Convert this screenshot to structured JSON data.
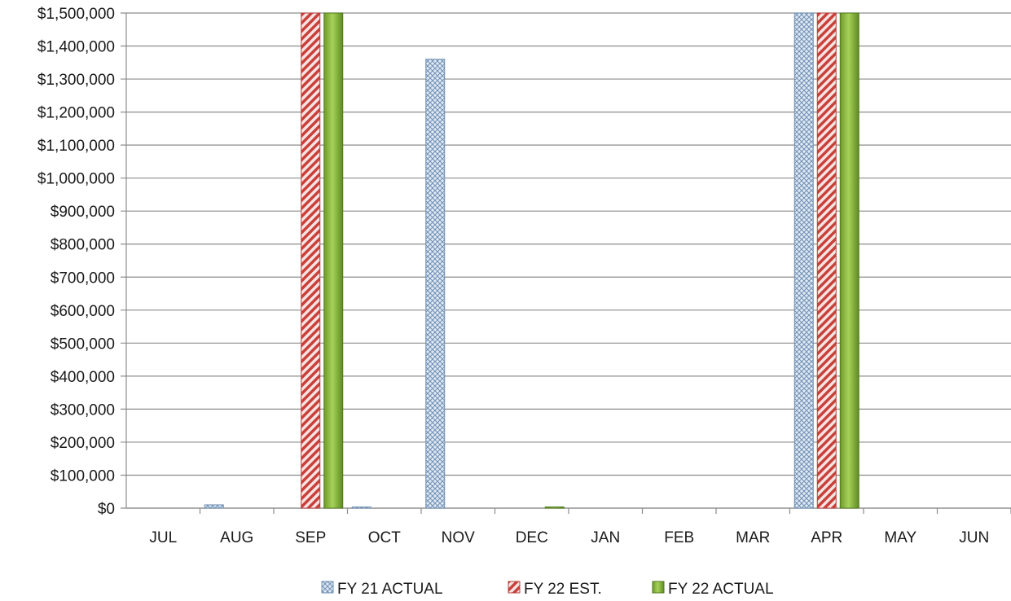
{
  "chart_data": {
    "type": "bar",
    "title": "",
    "xlabel": "",
    "ylabel": "",
    "categories": [
      "JUL",
      "AUG",
      "SEP",
      "OCT",
      "NOV",
      "DEC",
      "JAN",
      "FEB",
      "MAR",
      "APR",
      "MAY",
      "JUN"
    ],
    "ylim": [
      0,
      1500000
    ],
    "ytick_step": 100000,
    "ytick_labels": [
      "$0",
      "$100,000",
      "$200,000",
      "$300,000",
      "$400,000",
      "$500,000",
      "$600,000",
      "$700,000",
      "$800,000",
      "$900,000",
      "$1,000,000",
      "$1,100,000",
      "$1,200,000",
      "$1,300,000",
      "$1,400,000",
      "$1,500,000"
    ],
    "grid": true,
    "legend_position": "bottom",
    "series": [
      {
        "name": "FY 21 ACTUAL",
        "color": "#b8cfe6",
        "pattern": "crosshatch",
        "values": [
          0,
          10000,
          0,
          2000,
          1360000,
          0,
          0,
          0,
          0,
          1500000,
          0,
          0
        ]
      },
      {
        "name": "FY 22 EST.",
        "color": "#d9534f",
        "pattern": "diagonal-stripes",
        "values": [
          0,
          0,
          1500000,
          0,
          0,
          0,
          0,
          0,
          0,
          1500000,
          0,
          0
        ]
      },
      {
        "name": "FY 22 ACTUAL",
        "color": "#8fbc3a",
        "pattern": "solid-gradient",
        "values": [
          0,
          0,
          1500000,
          0,
          0,
          3000,
          0,
          0,
          0,
          1500000,
          0,
          0
        ]
      }
    ]
  }
}
